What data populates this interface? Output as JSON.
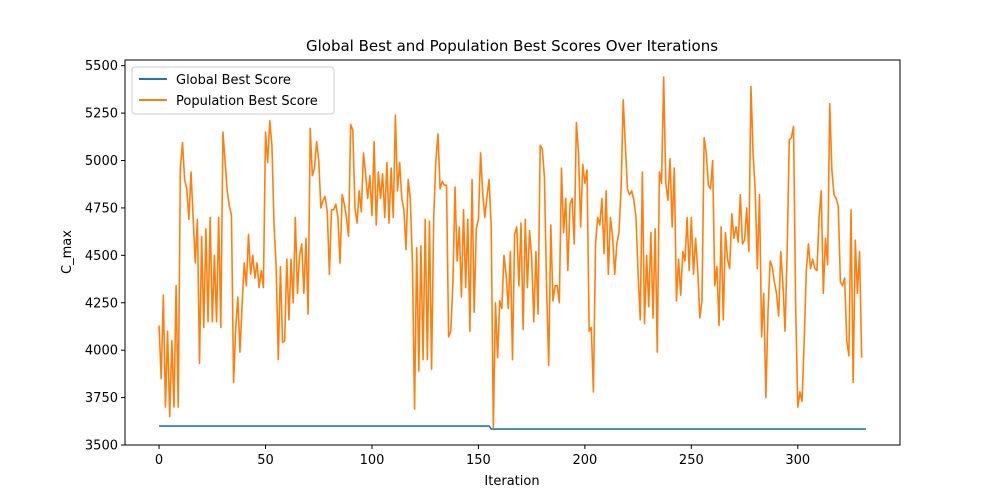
{
  "chart_data": {
    "type": "line",
    "title": "Global Best and Population Best Scores Over Iterations",
    "xlabel": "Iteration",
    "ylabel": "C_max",
    "xlim": [
      -16,
      348
    ],
    "ylim": [
      3500,
      5530
    ],
    "xticks": [
      0,
      50,
      100,
      150,
      200,
      250,
      300
    ],
    "yticks": [
      3500,
      3750,
      4000,
      4250,
      4500,
      4750,
      5000,
      5250,
      5500
    ],
    "grid": false,
    "legend_position": "upper left",
    "series": [
      {
        "name": "Global Best Score",
        "color": "#1f77b4",
        "points": [
          [
            0,
            3600
          ],
          [
            155,
            3600
          ],
          [
            156,
            3584
          ],
          [
            332,
            3584
          ]
        ]
      },
      {
        "name": "Population Best Score",
        "color": "#ff7f0e",
        "values": [
          4130,
          3850,
          4290,
          3700,
          4100,
          3650,
          4050,
          3700,
          4340,
          3700,
          4960,
          5095,
          4900,
          4850,
          4690,
          4940,
          4700,
          4460,
          4690,
          3930,
          4600,
          4120,
          4640,
          4150,
          4700,
          4150,
          4500,
          4150,
          4700,
          4120,
          5150,
          5000,
          4840,
          4760,
          4710,
          3830,
          4120,
          4280,
          3990,
          4240,
          4460,
          4340,
          4610,
          4400,
          4500,
          4380,
          4460,
          4330,
          4420,
          4330,
          5150,
          4990,
          5210,
          5080,
          4660,
          4440,
          3950,
          4440,
          4040,
          4050,
          4480,
          4160,
          4480,
          4250,
          4700,
          4300,
          4500,
          4560,
          4300,
          4590,
          4190,
          5170,
          4920,
          4960,
          5100,
          5000,
          4750,
          4790,
          4810,
          4730,
          4400,
          4740,
          4740,
          4770,
          4700,
          4460,
          4820,
          4770,
          4700,
          4600,
          5190,
          5160,
          4750,
          4670,
          4840,
          4730,
          5040,
          4930,
          4800,
          4920,
          4710,
          5100,
          4660,
          4940,
          4800,
          4930,
          4700,
          4990,
          4670,
          4960,
          4700,
          5240,
          4840,
          4990,
          4800,
          4740,
          4530,
          4900,
          4800,
          4460,
          3690,
          4540,
          3890,
          4550,
          3950,
          4690,
          3950,
          4680,
          3900,
          4700,
          5000,
          5140,
          4850,
          4890,
          4870,
          4870,
          4070,
          4100,
          4350,
          4860,
          4470,
          4650,
          4280,
          4740,
          4330,
          4690,
          4100,
          4900,
          4200,
          4640,
          4690,
          5040,
          4830,
          4700,
          4810,
          4900,
          4650,
          3590,
          4250,
          3960,
          4260,
          4220,
          4500,
          4400,
          4220,
          4520,
          3950,
          4610,
          4650,
          4340,
          4670,
          4110,
          4690,
          4330,
          4630,
          4490,
          4150,
          4520,
          4190,
          5080,
          5060,
          4910,
          4330,
          3920,
          4660,
          4260,
          4340,
          4340,
          4250,
          4960,
          4620,
          4800,
          4420,
          4770,
          4800,
          4560,
          5200,
          5040,
          4650,
          4980,
          4880,
          4950,
          4100,
          4120,
          3780,
          4560,
          4700,
          4660,
          4800,
          4510,
          4840,
          4400,
          4700,
          4600,
          4400,
          4560,
          4620,
          4850,
          5320,
          5080,
          4850,
          4820,
          4840,
          4790,
          4700,
          4400,
          4160,
          4940,
          4140,
          4500,
          4230,
          4620,
          4170,
          4640,
          3990,
          4940,
          4880,
          5440,
          4880,
          4790,
          5010,
          4650,
          4960,
          4260,
          4480,
          4290,
          4520,
          4470,
          4700,
          4420,
          4700,
          4400,
          4590,
          4420,
          4170,
          4260,
          5120,
          5040,
          4870,
          4850,
          5000,
          4340,
          4440,
          4130,
          4650,
          4160,
          4620,
          4480,
          4430,
          4720,
          4590,
          4650,
          4570,
          4820,
          4560,
          4580,
          4750,
          4520,
          5390,
          5040,
          4840,
          4430,
          4820,
          4070,
          4300,
          3750,
          4200,
          4470,
          4440,
          4360,
          4300,
          4180,
          4520,
          4350,
          4100,
          4520,
          5110,
          5120,
          5180,
          4230,
          3700,
          3780,
          3730,
          4050,
          4420,
          4560,
          4430,
          4480,
          4430,
          4420,
          4700,
          4840,
          4300,
          4590,
          4450,
          5300,
          4950,
          4820,
          4800,
          4760,
          4360,
          4340,
          4380,
          4050,
          3970,
          4740,
          3830,
          4580,
          4300,
          4520,
          3960
        ]
      }
    ]
  }
}
